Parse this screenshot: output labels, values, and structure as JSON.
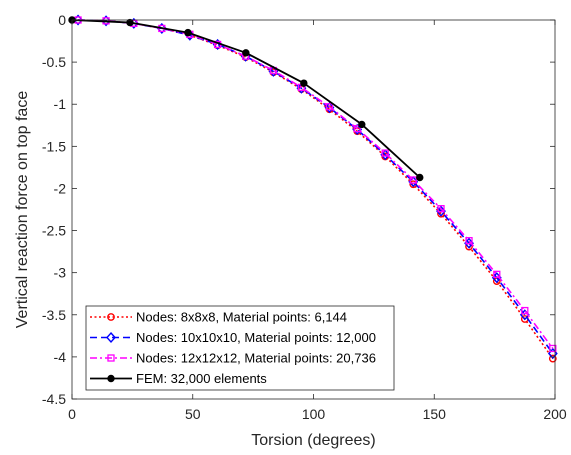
{
  "chart_data": {
    "type": "line",
    "xlabel": "Torsion (degrees)",
    "ylabel": "Vertical reaction force on top face",
    "xlim": [
      0,
      200
    ],
    "ylim": [
      -4.5,
      0
    ],
    "xticks": [
      0,
      50,
      100,
      150,
      200
    ],
    "xtick_labels": [
      "0",
      "50",
      "100",
      "150",
      "200"
    ],
    "yticks": [
      0,
      -0.5,
      -1,
      -1.5,
      -2,
      -2.5,
      -3,
      -3.5,
      -4,
      -4.5
    ],
    "ytick_labels": [
      "0",
      "-0.5",
      "-1",
      "-1.5",
      "-2",
      "-2.5",
      "-3",
      "-3.5",
      "-4",
      "-4.5"
    ],
    "grid": false,
    "legend_position": "bottom-left",
    "series": [
      {
        "name": "Nodes: 8x8x8, Material points: 6,144",
        "color": "#ff0000",
        "line_style": "dotted",
        "marker": "circle",
        "x": [
          2.5,
          14.1,
          25.6,
          37.2,
          48.8,
          60.3,
          71.9,
          83.4,
          95.0,
          106.6,
          118.1,
          129.7,
          141.3,
          152.8,
          164.4,
          175.9,
          187.5,
          199.1
        ],
        "y": [
          0.0,
          -0.01,
          -0.04,
          -0.1,
          -0.18,
          -0.3,
          -0.44,
          -0.62,
          -0.82,
          -1.06,
          -1.32,
          -1.62,
          -1.95,
          -2.3,
          -2.69,
          -3.1,
          -3.55,
          -4.02
        ]
      },
      {
        "name": "Nodes: 10x10x10, Material points: 12,000",
        "color": "#0000ff",
        "line_style": "dashed",
        "marker": "diamond",
        "x": [
          2.5,
          14.1,
          25.6,
          37.2,
          48.8,
          60.3,
          71.9,
          83.4,
          95.0,
          106.6,
          118.1,
          129.7,
          141.3,
          152.8,
          164.4,
          175.9,
          187.5,
          199.1
        ],
        "y": [
          0.0,
          -0.01,
          -0.04,
          -0.1,
          -0.18,
          -0.29,
          -0.43,
          -0.61,
          -0.81,
          -1.04,
          -1.3,
          -1.6,
          -1.92,
          -2.27,
          -2.65,
          -3.06,
          -3.5,
          -3.96
        ]
      },
      {
        "name": "Nodes: 12x12x12, Material points: 20,736",
        "color": "#ff00ff",
        "line_style": "dash-dot",
        "marker": "square",
        "x": [
          2.5,
          14.1,
          25.6,
          37.2,
          48.8,
          60.3,
          71.9,
          83.4,
          95.0,
          106.6,
          118.1,
          129.7,
          141.3,
          152.8,
          164.4,
          175.9,
          187.5,
          199.1
        ],
        "y": [
          0.0,
          -0.01,
          -0.04,
          -0.1,
          -0.17,
          -0.29,
          -0.43,
          -0.6,
          -0.8,
          -1.03,
          -1.29,
          -1.58,
          -1.9,
          -2.24,
          -2.62,
          -3.02,
          -3.45,
          -3.9
        ]
      },
      {
        "name": "FEM: 32,000 elements",
        "color": "#000000",
        "line_style": "solid",
        "marker": "filled-circle",
        "x": [
          0,
          24,
          48,
          72,
          96,
          120,
          144
        ],
        "y": [
          0.0,
          -0.03,
          -0.15,
          -0.39,
          -0.75,
          -1.24,
          -1.87
        ]
      }
    ]
  }
}
